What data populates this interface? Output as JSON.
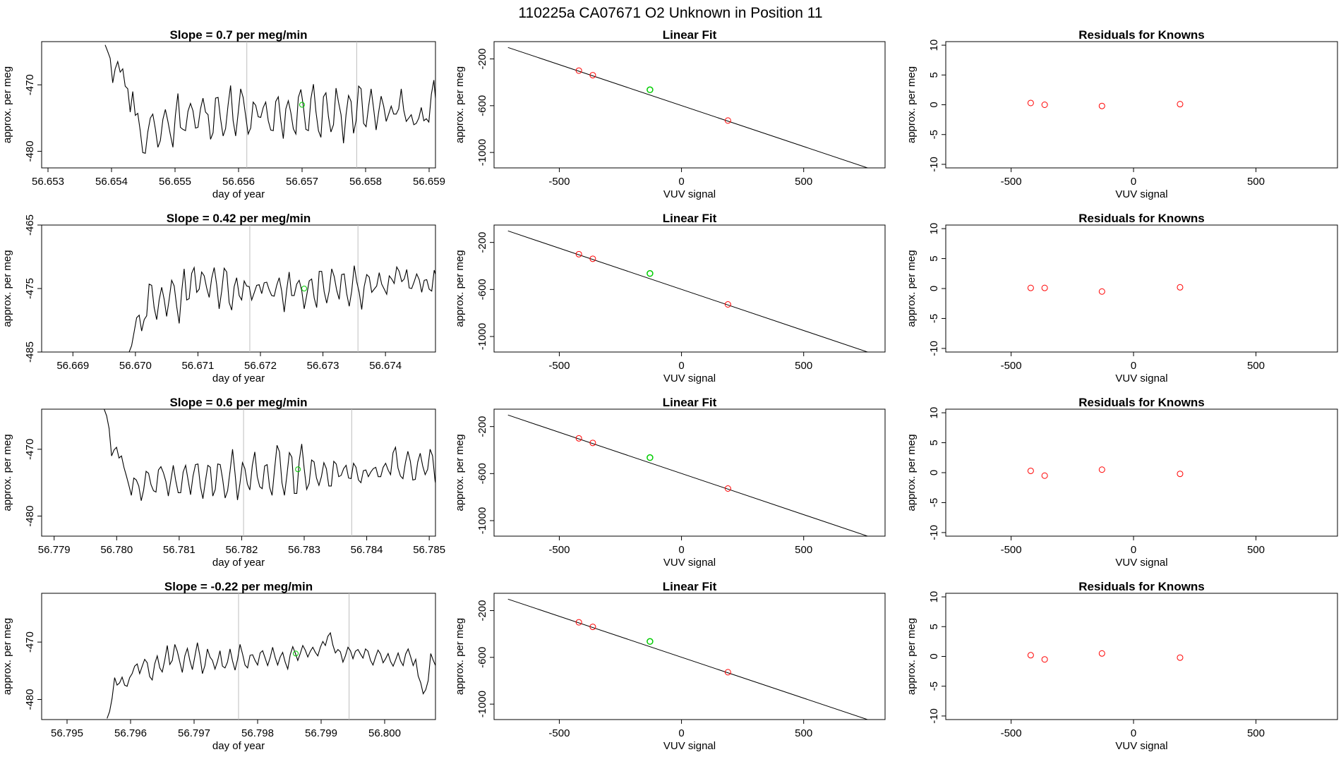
{
  "page_title": "110225a      CA07671    O2 Unknown in Position  11",
  "colors": {
    "trace": "#000000",
    "vline": "#bebebe",
    "known": "#ff0000",
    "unknown": "#00cd00",
    "fit": "#000000"
  },
  "chart_data": [
    {
      "type": "line",
      "title": "Slope =  0.7  per meg/min",
      "xlabel": "day of year",
      "ylabel": "approx. per meg",
      "xlim": [
        56.6529,
        56.6591
      ],
      "ylim": [
        -482.5,
        -463.5
      ],
      "xticks": [
        "56.653",
        "56.654",
        "56.655",
        "56.656",
        "56.657",
        "56.658",
        "56.659"
      ],
      "yticks": [
        "-470",
        "-480"
      ],
      "x_start": 56.6539,
      "x_step": 3.95e-05,
      "values": [
        -464,
        -465,
        -466.0,
        -469.7,
        -467.6,
        -466.5,
        -468.1,
        -467.6,
        -470.2,
        -470.6,
        -474.1,
        -471.0,
        -474.6,
        -474.3,
        -477.0,
        -480.2,
        -480.3,
        -477.1,
        -475.0,
        -474.4,
        -476.6,
        -479.4,
        -478.4,
        -475.2,
        -473.7,
        -475.5,
        -477.5,
        -479.4,
        -474.6,
        -471.3,
        -476.4,
        -476.7,
        -476.9,
        -474.0,
        -472.8,
        -473.9,
        -476.5,
        -476.4,
        -473.6,
        -472.0,
        -474.1,
        -474.5,
        -478.2,
        -477.2,
        -472.0,
        -471.9,
        -475.1,
        -477.7,
        -476.6,
        -473.0,
        -470.1,
        -475.4,
        -477.7,
        -474.3,
        -470.6,
        -471.9,
        -474.7,
        -477.4,
        -476.5,
        -472.6,
        -473.1,
        -474.8,
        -474.9,
        -473.4,
        -472.6,
        -475.4,
        -476.8,
        -476.9,
        -472.5,
        -471.8,
        -475.3,
        -478.1,
        -473.6,
        -472.4,
        -474.2,
        -476.6,
        -477.4,
        -471.9,
        -470.7,
        -473.2,
        -476.7,
        -476.9,
        -472.1,
        -469.9,
        -474.0,
        -476.9,
        -477.9,
        -471.8,
        -471.2,
        -474.8,
        -477.1,
        -476.0,
        -470.5,
        -472.6,
        -474.5,
        -478.8,
        -474.5,
        -471.6,
        -472.5,
        -477.3,
        -475.4,
        -470.2,
        -470.6,
        -475.8,
        -476.3,
        -473.2,
        -470.6,
        -473.6,
        -476.8,
        -474.1,
        -471.7,
        -473.2,
        -475.5,
        -474.4,
        -473.2,
        -474.4,
        -474.4,
        -473.6,
        -470.6,
        -473.8,
        -475.5,
        -475.0,
        -474.5,
        -476.0,
        -475.8,
        -475.0,
        -473.4,
        -475.4,
        -475.1,
        -475.6,
        -471.4,
        -469.3,
        -473.6,
        -479.3,
        -481.0,
        -480.5,
        -482.3
      ],
      "marker": {
        "x": 56.657,
        "y": -473.0
      },
      "vlines": [
        56.65613,
        56.65786
      ]
    },
    {
      "type": "line",
      "title": "Slope =  0.42  per meg/min",
      "xlabel": "day of year",
      "ylabel": "approx. per meg",
      "xlim": [
        56.6685,
        56.6748
      ],
      "ylim": [
        -485.0,
        -465.0
      ],
      "xticks": [
        "56.669",
        "56.670",
        "56.671",
        "56.672",
        "56.673",
        "56.674"
      ],
      "yticks": [
        "-465",
        "-475",
        "-485"
      ],
      "x_start": 56.6695,
      "x_step": 4e-05,
      "values": [
        -485,
        -485,
        -485,
        -485,
        -485,
        -485,
        -485,
        -485,
        -485,
        -485,
        -485,
        -484.0,
        -481.8,
        -479.6,
        -479.2,
        -481.7,
        -479.9,
        -479.3,
        -474.3,
        -474.5,
        -478.0,
        -479.9,
        -476.8,
        -474.8,
        -476.7,
        -479.4,
        -476.7,
        -473.7,
        -474.6,
        -477.8,
        -480.5,
        -475.5,
        -471.9,
        -476.8,
        -476.6,
        -472.6,
        -471.7,
        -475.6,
        -475.1,
        -472.4,
        -473.0,
        -474.9,
        -476.4,
        -473.4,
        -471.7,
        -474.4,
        -478.2,
        -475.4,
        -471.8,
        -472.4,
        -477.2,
        -478.4,
        -474.7,
        -473.3,
        -476.1,
        -476.8,
        -473.8,
        -474.6,
        -474.7,
        -476.8,
        -475.7,
        -474.5,
        -474.4,
        -475.8,
        -474.1,
        -474.0,
        -475.2,
        -476.1,
        -476.2,
        -474.5,
        -473.3,
        -475.4,
        -478.7,
        -475.2,
        -472.4,
        -476.1,
        -476.1,
        -474.3,
        -473.7,
        -475.3,
        -478.2,
        -476.1,
        -473.8,
        -473.5,
        -476.5,
        -478.0,
        -472.3,
        -472.3,
        -475.5,
        -477.3,
        -475.4,
        -471.9,
        -473.1,
        -475.3,
        -476.7,
        -472.8,
        -472.7,
        -475.8,
        -477.8,
        -475.4,
        -471.4,
        -473.9,
        -475.6,
        -478.3,
        -474.7,
        -472.8,
        -473.2,
        -475.6,
        -475.1,
        -474.6,
        -472.5,
        -474.3,
        -475.1,
        -475.9,
        -473.0,
        -473.5,
        -474.2,
        -471.6,
        -472.3,
        -473.9,
        -473.5,
        -472.0,
        -474.9,
        -475.0,
        -473.9,
        -472.7,
        -473.6,
        -475.6,
        -473.7,
        -473.6,
        -475.1,
        -475.4,
        -472.1,
        -473.4,
        -475.4,
        -474.3,
        -469.3,
        -465.0
      ],
      "marker": {
        "x": 56.6727,
        "y": -475.0
      },
      "vlines": [
        56.67183,
        56.67356
      ]
    },
    {
      "type": "line",
      "title": "Slope =  0.6  per meg/min",
      "xlabel": "day of year",
      "ylabel": "approx. per meg",
      "xlim": [
        56.7788,
        56.7851
      ],
      "ylim": [
        -483.0,
        -464.0
      ],
      "xticks": [
        "56.779",
        "56.780",
        "56.781",
        "56.782",
        "56.783",
        "56.784",
        "56.785"
      ],
      "yticks": [
        "-470",
        "-480"
      ],
      "x_start": 56.7798,
      "x_step": 3.95e-05,
      "values": [
        -464,
        -465,
        -466.9,
        -471.0,
        -470.1,
        -469.7,
        -471.3,
        -471.0,
        -472.7,
        -474.0,
        -475.4,
        -476.9,
        -474.3,
        -474.6,
        -475.5,
        -477.7,
        -476.1,
        -473.3,
        -473.6,
        -475.3,
        -476.2,
        -476.4,
        -473.1,
        -472.6,
        -473.5,
        -474.8,
        -477.0,
        -474.7,
        -472.4,
        -474.7,
        -476.5,
        -476.5,
        -473.4,
        -472.4,
        -474.6,
        -476.8,
        -474.0,
        -472.3,
        -472.2,
        -475.6,
        -477.4,
        -474.8,
        -472.4,
        -472.7,
        -477.0,
        -476.0,
        -472.2,
        -472.3,
        -474.5,
        -477.3,
        -476.2,
        -473.2,
        -470.0,
        -473.6,
        -477.6,
        -475.1,
        -472.0,
        -472.9,
        -475.2,
        -476.1,
        -472.4,
        -470.4,
        -474.1,
        -475.6,
        -475.9,
        -472.5,
        -472.3,
        -475.7,
        -476.9,
        -473.0,
        -469.4,
        -470.4,
        -475.0,
        -476.9,
        -473.9,
        -470.5,
        -471.2,
        -476.6,
        -476.6,
        -471.7,
        -469.2,
        -472.9,
        -476.0,
        -475.1,
        -471.6,
        -471.9,
        -474.3,
        -475.4,
        -474.1,
        -472.0,
        -472.9,
        -475.5,
        -475.5,
        -471.8,
        -472.2,
        -474.1,
        -473.9,
        -472.9,
        -472.4,
        -474.3,
        -474.4,
        -472.1,
        -472.7,
        -474.6,
        -475.0,
        -473.2,
        -473.1,
        -474.1,
        -473.4,
        -472.9,
        -472.7,
        -474.1,
        -474.1,
        -472.7,
        -472.1,
        -473.1,
        -473.8,
        -470.5,
        -469.7,
        -472.8,
        -474.0,
        -474.4,
        -472.0,
        -470.3,
        -471.8,
        -474.6,
        -474.5,
        -471.9,
        -470.6,
        -472.5,
        -473.8,
        -473.0,
        -470.0,
        -471.0,
        -474.7,
        -476.6,
        -478.5,
        -480.1,
        -482.4
      ],
      "marker": {
        "x": 56.7829,
        "y": -473.0
      },
      "vlines": [
        56.78203,
        56.78376
      ]
    },
    {
      "type": "line",
      "title": "Slope =  -0.22  per meg/min",
      "xlabel": "day of year",
      "ylabel": "approx. per meg",
      "xlim": [
        56.7946,
        56.8008
      ],
      "ylim": [
        -483.5,
        -461.5
      ],
      "xticks": [
        "56.795",
        "56.796",
        "56.797",
        "56.798",
        "56.799",
        "56.800"
      ],
      "yticks": [
        "-470",
        "-480"
      ],
      "x_start": 56.79563,
      "x_step": 3.95e-05,
      "values": [
        -483.3,
        -482.1,
        -479.8,
        -476.2,
        -477.5,
        -477.1,
        -476.1,
        -477.5,
        -477.7,
        -476.2,
        -475.5,
        -474.2,
        -473.8,
        -475.5,
        -474.2,
        -473.0,
        -473.6,
        -476.0,
        -476.6,
        -473.8,
        -472.4,
        -474.5,
        -475.2,
        -473.1,
        -470.6,
        -473.9,
        -473.2,
        -470.4,
        -471.6,
        -473.5,
        -475.3,
        -472.4,
        -471.1,
        -473.2,
        -474.8,
        -472.5,
        -470.1,
        -472.4,
        -475.5,
        -474.1,
        -471.2,
        -472.6,
        -473.2,
        -474.7,
        -473.4,
        -471.5,
        -474.2,
        -474.5,
        -473.5,
        -471.2,
        -473.3,
        -474.9,
        -473.0,
        -470.4,
        -472.1,
        -474.0,
        -474.5,
        -472.3,
        -472.2,
        -473.2,
        -474.0,
        -471.9,
        -471.5,
        -472.8,
        -474.1,
        -472.7,
        -470.9,
        -472.7,
        -474.0,
        -472.6,
        -471.8,
        -473.5,
        -474.7,
        -472.2,
        -470.8,
        -471.9,
        -473.2,
        -472.0,
        -470.6,
        -471.4,
        -472.6,
        -471.6,
        -470.9,
        -471.8,
        -472.4,
        -470.9,
        -469.9,
        -470.6,
        -469.0,
        -468.4,
        -470.5,
        -471.9,
        -471.3,
        -471.7,
        -473.5,
        -472.4,
        -470.9,
        -471.5,
        -472.9,
        -471.6,
        -471.3,
        -472.1,
        -472.8,
        -471.2,
        -471.6,
        -473.2,
        -474.0,
        -472.6,
        -471.4,
        -472.1,
        -473.6,
        -472.9,
        -472.0,
        -473.4,
        -474.2,
        -473.1,
        -471.9,
        -473.3,
        -474.1,
        -472.1,
        -471.2,
        -472.6,
        -474.1,
        -473.0,
        -475.9,
        -477.1,
        -479.0,
        -478.3,
        -476.7,
        -472.0,
        -473.2,
        -474.2,
        -472.1,
        -471.3,
        -472.5,
        -474.5,
        -477.1,
        -477.7,
        -476.1,
        -471.2,
        -469.3,
        -469.8,
        -466.6,
        -463.6,
        -461.5
      ],
      "marker": {
        "x": 56.7986,
        "y": -472.0
      },
      "vlines": [
        56.7977,
        56.79944
      ]
    },
    {
      "type": "scatter",
      "title": "Linear Fit",
      "xlabel": "VUV signal",
      "ylabel": "approx. per meg",
      "xlim": [
        -767,
        833
      ],
      "ylim": [
        -1132,
        -52
      ],
      "xticks": [
        "-500",
        "0",
        "500"
      ],
      "yticks": [
        "-200",
        "-600",
        "-1000"
      ],
      "fit_line": {
        "x": [
          -710,
          790
        ],
        "y": [
          -102,
          -1152
        ]
      },
      "knowns": {
        "x": [
          -420,
          -363,
          190
        ],
        "y": [
          -300,
          -339,
          -727
        ]
      },
      "unknown": {
        "x": -129,
        "y": -464
      }
    },
    {
      "type": "scatter",
      "title": "Residuals for Knowns",
      "xlabel": "VUV signal",
      "ylabel": "approx. per meg",
      "xlim": [
        -767,
        833
      ],
      "ylim": [
        -10.6,
        10.6
      ],
      "xticks": [
        "-500",
        "0",
        "500"
      ],
      "yticks": [
        "10",
        "5",
        "0",
        "-5",
        "-10"
      ],
      "rows": [
        {
          "x": [
            -420,
            -363,
            -129,
            190
          ],
          "y": [
            0.3,
            0.0,
            -0.2,
            0.1
          ]
        },
        {
          "x": [
            -420,
            -363,
            -129,
            190
          ],
          "y": [
            0.1,
            0.1,
            -0.5,
            0.2
          ]
        },
        {
          "x": [
            -420,
            -363,
            -129,
            190
          ],
          "y": [
            0.3,
            -0.5,
            0.5,
            -0.2
          ]
        },
        {
          "x": [
            -420,
            -363,
            -129,
            190
          ],
          "y": [
            0.2,
            -0.5,
            0.5,
            -0.2
          ]
        }
      ]
    }
  ]
}
